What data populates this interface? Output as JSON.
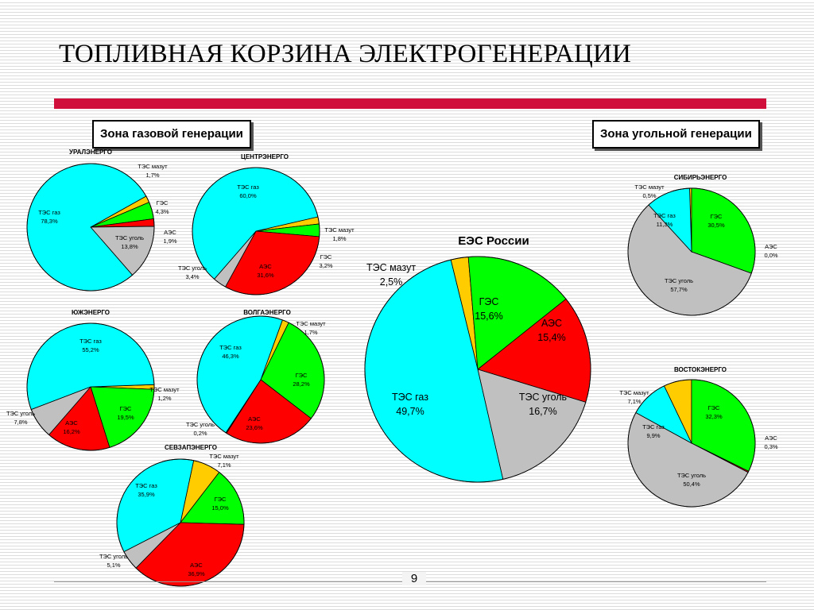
{
  "slide": {
    "title": "ТОПЛИВНАЯ КОРЗИНА ЭЛЕКТРОГЕНЕРАЦИИ",
    "zone_gas": "Зона газовой генерации",
    "zone_coal": "Зона угольной генерации",
    "page_number": "9"
  },
  "colors": {
    "ТЭС газ": "#00ffff",
    "ТЭС мазут": "#ffcc00",
    "ГЭС": "#00ff00",
    "АЭС": "#ff0000",
    "ТЭС уголь": "#c0c0c0",
    "title_rule": "#d0103a"
  },
  "chart_data": [
    {
      "type": "pie",
      "title": "УРАЛЭНЕРГО",
      "slices": [
        {
          "label": "ТЭС мазут",
          "value": 1.7,
          "value_text": "1,7%"
        },
        {
          "label": "ГЭС",
          "value": 4.3,
          "value_text": "4,3%"
        },
        {
          "label": "АЭС",
          "value": 1.9,
          "value_text": "1,9%"
        },
        {
          "label": "ТЭС уголь",
          "value": 13.8,
          "value_text": "13,8%"
        },
        {
          "label": "ТЭС газ",
          "value": 78.3,
          "value_text": "78,3%"
        }
      ]
    },
    {
      "type": "pie",
      "title": "ЦЕНТРЭНЕРГО",
      "slices": [
        {
          "label": "ТЭС мазут",
          "value": 1.8,
          "value_text": "1,8%"
        },
        {
          "label": "ГЭС",
          "value": 3.2,
          "value_text": "3,2%"
        },
        {
          "label": "АЭС",
          "value": 31.6,
          "value_text": "31,6%"
        },
        {
          "label": "ТЭС уголь",
          "value": 3.4,
          "value_text": "3,4%"
        },
        {
          "label": "ТЭС газ",
          "value": 60.0,
          "value_text": "60,0%"
        }
      ]
    },
    {
      "type": "pie",
      "title": "ЮЖЭНЕРГО",
      "slices": [
        {
          "label": "ТЭС мазут",
          "value": 1.2,
          "value_text": "1,2%"
        },
        {
          "label": "ГЭС",
          "value": 19.5,
          "value_text": "19,5%"
        },
        {
          "label": "АЭС",
          "value": 16.2,
          "value_text": "16,2%"
        },
        {
          "label": "ТЭС уголь",
          "value": 7.8,
          "value_text": "7,8%"
        },
        {
          "label": "ТЭС газ",
          "value": 55.2,
          "value_text": "55,2%"
        }
      ]
    },
    {
      "type": "pie",
      "title": "ВОЛГАЭНЕРГО",
      "slices": [
        {
          "label": "ТЭС мазут",
          "value": 1.7,
          "value_text": "1,7%"
        },
        {
          "label": "ГЭС",
          "value": 28.2,
          "value_text": "28,2%"
        },
        {
          "label": "АЭС",
          "value": 23.6,
          "value_text": "23,6%"
        },
        {
          "label": "ТЭС уголь",
          "value": 0.2,
          "value_text": "0,2%"
        },
        {
          "label": "ТЭС газ",
          "value": 46.3,
          "value_text": "46,3%"
        }
      ]
    },
    {
      "type": "pie",
      "title": "СЕВЗАПЭНЕРГО",
      "slices": [
        {
          "label": "ТЭС мазут",
          "value": 7.1,
          "value_text": "7,1%"
        },
        {
          "label": "ГЭС",
          "value": 15.0,
          "value_text": "15,0%"
        },
        {
          "label": "АЭС",
          "value": 36.9,
          "value_text": "36,9%"
        },
        {
          "label": "ТЭС уголь",
          "value": 5.1,
          "value_text": "5,1%"
        },
        {
          "label": "ТЭС газ",
          "value": 35.9,
          "value_text": "35,9%"
        }
      ]
    },
    {
      "type": "pie",
      "title": "ЕЭС России",
      "slices": [
        {
          "label": "ТЭС мазут",
          "value": 2.5,
          "value_text": "2,5%"
        },
        {
          "label": "ГЭС",
          "value": 15.6,
          "value_text": "15,6%"
        },
        {
          "label": "АЭС",
          "value": 15.4,
          "value_text": "15,4%"
        },
        {
          "label": "ТЭС уголь",
          "value": 16.7,
          "value_text": "16,7%"
        },
        {
          "label": "ТЭС газ",
          "value": 49.7,
          "value_text": "49,7%"
        }
      ]
    },
    {
      "type": "pie",
      "title": "СИБИРЬЭНЕРГО",
      "slices": [
        {
          "label": "ТЭС мазут",
          "value": 0.5,
          "value_text": "0,5%"
        },
        {
          "label": "ГЭС",
          "value": 30.5,
          "value_text": "30,5%"
        },
        {
          "label": "АЭС",
          "value": 0.0,
          "value_text": "0,0%"
        },
        {
          "label": "ТЭС уголь",
          "value": 57.7,
          "value_text": "57,7%"
        },
        {
          "label": "ТЭС газ",
          "value": 11.3,
          "value_text": "11,3%"
        }
      ]
    },
    {
      "type": "pie",
      "title": "ВОСТОКЭНЕРГО",
      "slices": [
        {
          "label": "ТЭС мазут",
          "value": 7.1,
          "value_text": "7,1%"
        },
        {
          "label": "ГЭС",
          "value": 32.3,
          "value_text": "32,3%"
        },
        {
          "label": "АЭС",
          "value": 0.3,
          "value_text": "0,3%"
        },
        {
          "label": "ТЭС уголь",
          "value": 50.4,
          "value_text": "50,4%"
        },
        {
          "label": "ТЭС газ",
          "value": 9.9,
          "value_text": "9,9%"
        }
      ]
    }
  ]
}
